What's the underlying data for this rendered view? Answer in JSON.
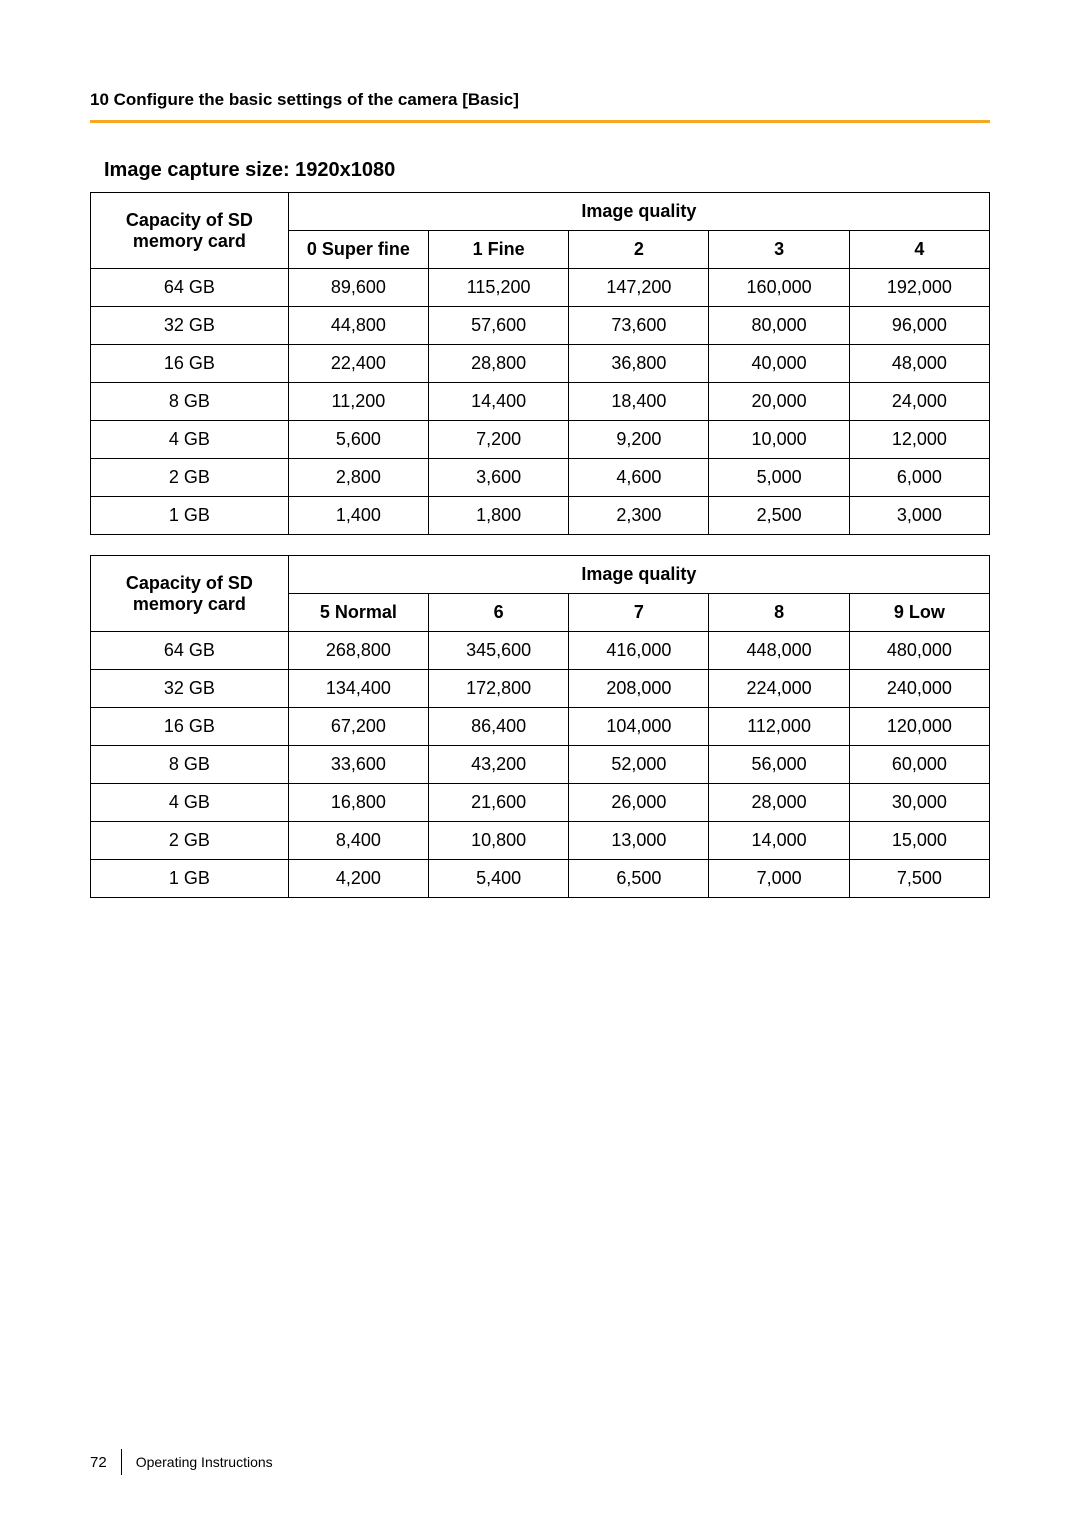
{
  "header": {
    "chapter": "10 Configure the basic settings of the camera [Basic]",
    "accent_color": "#f7a823"
  },
  "section_title": "Image capture size: 1920x1080",
  "table1": {
    "row_header_line1": "Capacity of SD",
    "row_header_line2": "memory card",
    "group_header": "Image quality",
    "columns": [
      "0 Super fine",
      "1 Fine",
      "2",
      "3",
      "4"
    ],
    "rows": [
      {
        "capacity": "64 GB",
        "values": [
          "89,600",
          "115,200",
          "147,200",
          "160,000",
          "192,000"
        ]
      },
      {
        "capacity": "32 GB",
        "values": [
          "44,800",
          "57,600",
          "73,600",
          "80,000",
          "96,000"
        ]
      },
      {
        "capacity": "16 GB",
        "values": [
          "22,400",
          "28,800",
          "36,800",
          "40,000",
          "48,000"
        ]
      },
      {
        "capacity": "8 GB",
        "values": [
          "11,200",
          "14,400",
          "18,400",
          "20,000",
          "24,000"
        ]
      },
      {
        "capacity": "4 GB",
        "values": [
          "5,600",
          "7,200",
          "9,200",
          "10,000",
          "12,000"
        ]
      },
      {
        "capacity": "2 GB",
        "values": [
          "2,800",
          "3,600",
          "4,600",
          "5,000",
          "6,000"
        ]
      },
      {
        "capacity": "1 GB",
        "values": [
          "1,400",
          "1,800",
          "2,300",
          "2,500",
          "3,000"
        ]
      }
    ]
  },
  "table2": {
    "row_header_line1": "Capacity of SD",
    "row_header_line2": "memory card",
    "group_header": "Image quality",
    "columns": [
      "5 Normal",
      "6",
      "7",
      "8",
      "9 Low"
    ],
    "rows": [
      {
        "capacity": "64 GB",
        "values": [
          "268,800",
          "345,600",
          "416,000",
          "448,000",
          "480,000"
        ]
      },
      {
        "capacity": "32 GB",
        "values": [
          "134,400",
          "172,800",
          "208,000",
          "224,000",
          "240,000"
        ]
      },
      {
        "capacity": "16 GB",
        "values": [
          "67,200",
          "86,400",
          "104,000",
          "112,000",
          "120,000"
        ]
      },
      {
        "capacity": "8 GB",
        "values": [
          "33,600",
          "43,200",
          "52,000",
          "56,000",
          "60,000"
        ]
      },
      {
        "capacity": "4 GB",
        "values": [
          "16,800",
          "21,600",
          "26,000",
          "28,000",
          "30,000"
        ]
      },
      {
        "capacity": "2 GB",
        "values": [
          "8,400",
          "10,800",
          "13,000",
          "14,000",
          "15,000"
        ]
      },
      {
        "capacity": "1 GB",
        "values": [
          "4,200",
          "5,400",
          "6,500",
          "7,000",
          "7,500"
        ]
      }
    ]
  },
  "footer": {
    "page_number": "72",
    "doc_label": "Operating Instructions"
  }
}
